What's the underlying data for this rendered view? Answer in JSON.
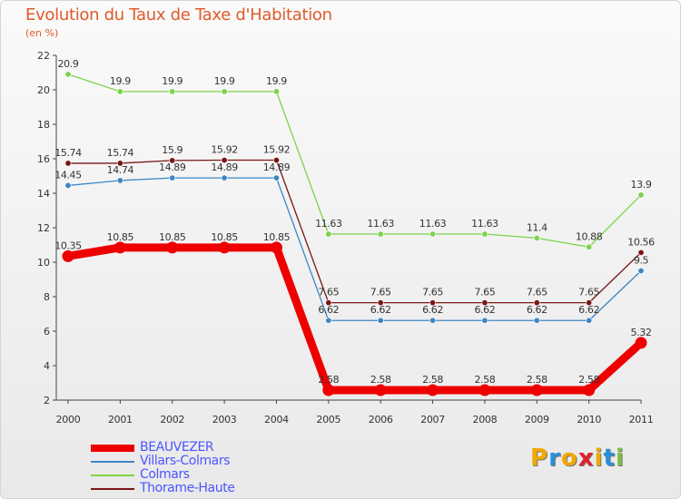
{
  "header": {
    "title": "Evolution du Taux de Taxe d'Habitation",
    "unit": "(en %)"
  },
  "logo": {
    "text": "Proxiti",
    "colors": [
      "#f2a800",
      "#2a8fd8",
      "#f2a800",
      "#e0222a",
      "#f2a800",
      "#2a8fd8",
      "#7ac142"
    ]
  },
  "chart_data": {
    "type": "line",
    "title": "Evolution du Taux de Taxe d'Habitation",
    "ylabel": "(en %)",
    "xlabel": "",
    "x": [
      "2000",
      "2001",
      "2002",
      "2003",
      "2004",
      "2005",
      "2006",
      "2007",
      "2008",
      "2009",
      "2010",
      "2011"
    ],
    "ylim": [
      2,
      22
    ],
    "yticks": [
      2,
      4,
      6,
      8,
      10,
      12,
      14,
      16,
      18,
      20,
      22
    ],
    "grid": false,
    "legend_position": "bottom-left",
    "series": [
      {
        "name": "BEAUVEZER",
        "color": "#ee0000",
        "values": [
          10.35,
          10.85,
          10.85,
          10.85,
          10.85,
          2.58,
          2.58,
          2.58,
          2.58,
          2.58,
          2.58,
          5.32
        ],
        "labels": [
          "10.35",
          "10.85",
          "10.85",
          "10.85",
          "10.85",
          "2.58",
          "2.58",
          "2.58",
          "2.58",
          "2.58",
          "2.58",
          "5.32"
        ]
      },
      {
        "name": "Villars-Colmars",
        "color": "#3d86c6",
        "values": [
          14.45,
          14.74,
          14.89,
          14.89,
          14.89,
          6.62,
          6.62,
          6.62,
          6.62,
          6.62,
          6.62,
          9.5
        ],
        "labels": [
          "14.45",
          "14.74",
          "14.89",
          "14.89",
          "14.89",
          "6.62",
          "6.62",
          "6.62",
          "6.62",
          "6.62",
          "6.62",
          "9.5"
        ]
      },
      {
        "name": "Colmars",
        "color": "#7cd34a",
        "values": [
          20.9,
          19.9,
          19.9,
          19.9,
          19.9,
          11.63,
          11.63,
          11.63,
          11.63,
          11.4,
          10.88,
          13.9
        ],
        "labels": [
          "20.9",
          "19.9",
          "19.9",
          "19.9",
          "19.9",
          "11.63",
          "11.63",
          "11.63",
          "11.63",
          "11.4",
          "10.88",
          "13.9"
        ]
      },
      {
        "name": "Thorame-Haute",
        "color": "#7a1616",
        "values": [
          15.74,
          15.74,
          15.9,
          15.92,
          15.92,
          7.65,
          7.65,
          7.65,
          7.65,
          7.65,
          7.65,
          10.56
        ],
        "labels": [
          "15.74",
          "15.74",
          "15.9",
          "15.92",
          "15.92",
          "7.65",
          "7.65",
          "7.65",
          "7.65",
          "7.65",
          "7.65",
          "10.56"
        ]
      }
    ]
  }
}
